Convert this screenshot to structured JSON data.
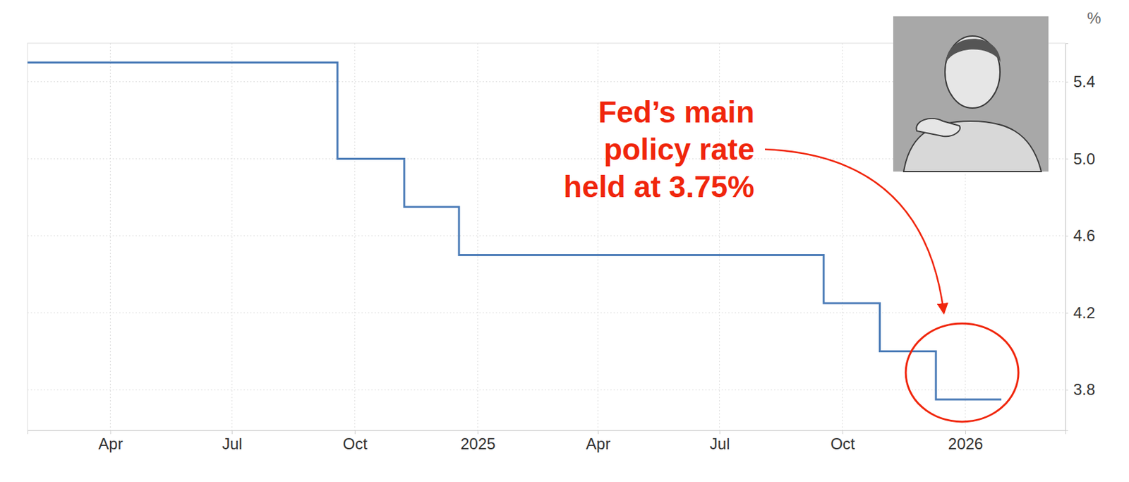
{
  "chart_data": {
    "type": "line",
    "annotation": [
      "Fed’s main",
      "policy rate",
      "held at 3.75%"
    ],
    "y_label": "%",
    "x": [
      "2024-01-30",
      "2024-09-18",
      "2024-11-07",
      "2024-12-18",
      "2025-09-17",
      "2025-10-29",
      "2025-12-10",
      "2026-01-28"
    ],
    "series": [
      {
        "color": "#4a7bb7",
        "line_style": "step",
        "values": [
          5.5,
          5.0,
          4.75,
          4.5,
          4.25,
          4.0,
          3.75,
          3.75
        ]
      }
    ],
    "xlim": [
      "2024-01-30",
      "2026-03-17"
    ],
    "xticks": [
      {
        "value": "2024-04-01",
        "label": "Apr"
      },
      {
        "value": "2024-07-01",
        "label": "Jul"
      },
      {
        "value": "2024-10-01",
        "label": "Oct"
      },
      {
        "value": "2025-01-01",
        "label": "2025"
      },
      {
        "value": "2025-04-01",
        "label": "Apr"
      },
      {
        "value": "2025-07-01",
        "label": "Jul"
      },
      {
        "value": "2025-10-01",
        "label": "Oct"
      },
      {
        "value": "2026-01-01",
        "label": "2026"
      }
    ],
    "ylim": [
      3.59,
      5.6
    ],
    "yticks": [
      3.8,
      4.2,
      4.6,
      {
        "value": 5,
        "label": "5.0"
      },
      5.4
    ],
    "grid": true
  }
}
